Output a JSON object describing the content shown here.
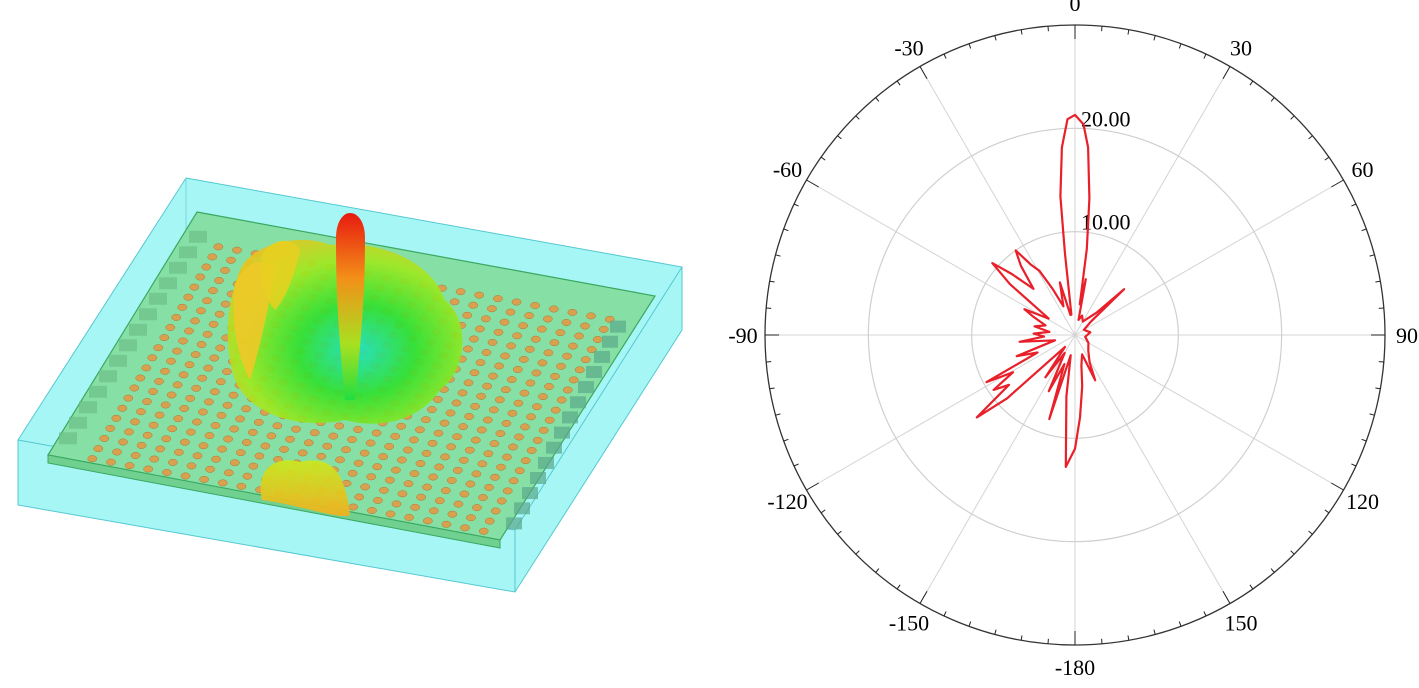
{
  "chart_data": {
    "type": "polar",
    "title": "",
    "angle_ticks": [
      "0",
      "30",
      "60",
      "90",
      "120",
      "150",
      "-180",
      "-150",
      "-120",
      "-90",
      "-60",
      "-30"
    ],
    "angle_tick_values": [
      0,
      30,
      60,
      90,
      120,
      150,
      180,
      -150,
      -120,
      -90,
      -60,
      -30
    ],
    "radial_tick_labels": [
      "10.00",
      "20.00"
    ],
    "radial_tick_values": [
      10,
      20
    ],
    "rlim": [
      0,
      30
    ],
    "grid": true,
    "series": [
      {
        "color": "#e8202a",
        "theta": [
          -180,
          -176,
          -172,
          -168,
          -163,
          -160,
          -155,
          -150,
          -145,
          -140,
          -133,
          -130,
          -127,
          -124,
          -121,
          -118,
          -115,
          -110,
          -105,
          -97,
          -93,
          -88,
          -83,
          -78,
          -72,
          -66,
          -63,
          -58,
          -52,
          -49,
          -46,
          -42,
          -38,
          -35,
          -32,
          -29,
          -26,
          -22,
          -16,
          -13,
          -10,
          -7,
          -6,
          -4,
          -2,
          0,
          2.3,
          4,
          6,
          7.8,
          9,
          11,
          13,
          20,
          30,
          44,
          47,
          50,
          60,
          80,
          100,
          120,
          140,
          152,
          156,
          160,
          168,
          172,
          176.5,
          180
        ],
        "r": [
          11,
          12.8,
          6,
          2,
          8.5,
          3,
          6,
          2,
          5,
          1.5,
          9,
          12.4,
          8,
          9.5,
          7,
          9.7,
          4,
          6,
          2,
          5.4,
          3,
          4,
          2.5,
          4,
          3,
          4.5,
          5.5,
          3,
          8,
          10.6,
          8.5,
          6,
          8.5,
          10,
          8,
          7.1,
          5,
          3,
          5.3,
          2,
          2,
          8,
          13.5,
          18.2,
          20.9,
          21.3,
          20.4,
          18.2,
          13.3,
          8.4,
          3,
          5.5,
          1.5,
          2,
          1.5,
          3,
          6.5,
          2,
          1,
          1.5,
          1,
          1.5,
          2,
          3,
          4.8,
          2,
          3,
          5,
          8,
          11
        ]
      }
    ]
  },
  "colors": {
    "trace": "#e8202a",
    "radome": "#9ff5f5",
    "substrate": "#7fe0a0",
    "patch": "#d9a050",
    "beam_peak": "#e82010"
  }
}
